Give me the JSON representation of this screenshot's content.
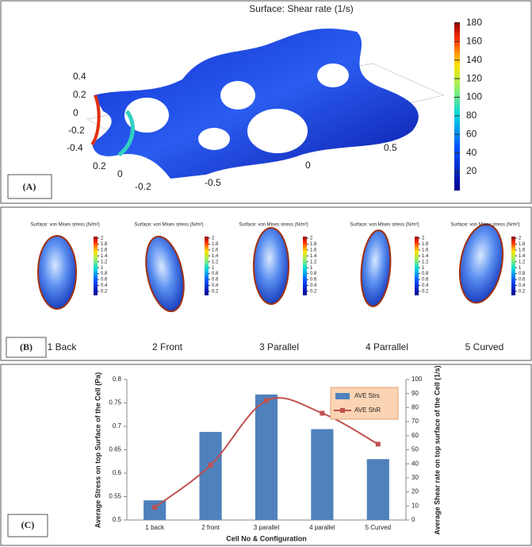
{
  "panel_a": {
    "title": "Surface: Shear rate (1/s)",
    "label": "(A)",
    "colorbar_ticks": [
      20,
      40,
      60,
      80,
      100,
      120,
      140,
      160,
      180
    ],
    "y_axis_labels": [
      0.4,
      0.2,
      0,
      -0.2,
      -0.4
    ],
    "x_axis_labels": [
      0.2,
      0,
      -0.2
    ],
    "z_axis_labels": [
      0.5,
      0,
      -0.5
    ]
  },
  "panel_b": {
    "label": "(B)",
    "colorbar_ticks": [
      2,
      1.8,
      1.6,
      1.4,
      1.2,
      1,
      0.8,
      0.6,
      0.4,
      0.2
    ],
    "cells": [
      {
        "title": "Surface: von Mises stress (N/m²)",
        "name": "1 Back"
      },
      {
        "title": "Surface: von Mises stress (N/m²)",
        "name": "2 Front"
      },
      {
        "title": "Surface: von Mises stress (N/m²)",
        "name": "3 Parallel"
      },
      {
        "title": "Surface: von Mises stress (N/m²)",
        "name": "4 Parrallel"
      },
      {
        "title": "Surface: von Mises stress (N/m²)",
        "name": "5 Curved"
      }
    ]
  },
  "chart_data": {
    "type": "bar-line",
    "label": "(C)",
    "x_label": "Cell No & Configuration",
    "y_label": "Average Stress on top  Surface of the Cell (Pa)",
    "y2_label": "Average Shear rate on top surface of the Cell (1/s)",
    "categories": [
      "1 back",
      "2 front",
      "3 parallel",
      "4 parallel",
      "5 Curved"
    ],
    "series": [
      {
        "name": "AVE Strs",
        "color": "#4f81bd",
        "type": "bar",
        "values": [
          0.542,
          0.688,
          0.768,
          0.694,
          0.63
        ]
      },
      {
        "name": "AVE ShR",
        "color": "#c0504d",
        "type": "line",
        "axis": "y2",
        "values": [
          9,
          39,
          85,
          76,
          54
        ]
      }
    ],
    "ylim": [
      0.5,
      0.8
    ],
    "yticks": [
      0.5,
      0.55,
      0.6,
      0.65,
      0.7,
      0.75,
      0.8
    ],
    "y2lim": [
      0,
      100
    ],
    "y2ticks": [
      0,
      10,
      20,
      30,
      40,
      50,
      60,
      70,
      80,
      90,
      100
    ],
    "legend": "upper right"
  }
}
